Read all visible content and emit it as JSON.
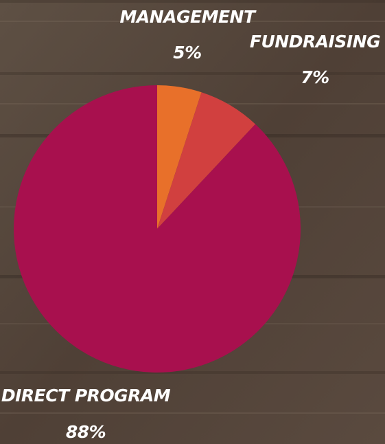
{
  "chart_data": {
    "type": "pie",
    "categories": [
      "MANAGEMENT",
      "FUNDRAISING",
      "DIRECT PROGRAM"
    ],
    "values": [
      5,
      7,
      88
    ],
    "value_labels": [
      "5%",
      "7%",
      "88%"
    ],
    "colors": [
      "#e8702a",
      "#d1403f",
      "#a8104e"
    ],
    "start_angle": "top",
    "direction": "clockwise"
  }
}
